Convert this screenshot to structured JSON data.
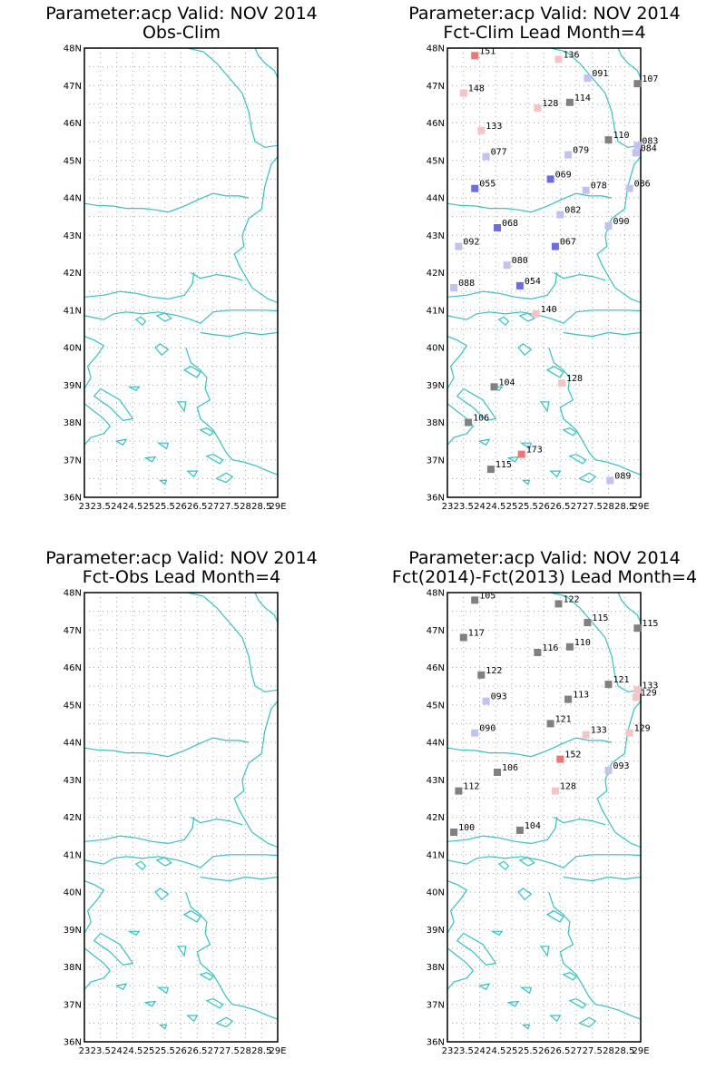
{
  "colors": {
    "coast": "#2ec4c4",
    "neutral": "#808080",
    "blue_strong": "#6b6bf2",
    "blue_light": "#c2c2f2",
    "red_light": "#f7c3c3",
    "red_strong": "#f27575"
  },
  "axes": {
    "lon_labels": [
      "23",
      "23.5",
      "24",
      "24.5",
      "25",
      "25.5",
      "26",
      "26.5",
      "27",
      "27.5",
      "28",
      "28.5",
      "29E"
    ],
    "lat_labels": [
      "36N",
      "37N",
      "38N",
      "39N",
      "40N",
      "41N",
      "42N",
      "43N",
      "44N",
      "45N",
      "46N",
      "47N",
      "48N"
    ]
  },
  "chart_data": [
    {
      "id": "obs-clim",
      "type": "map",
      "title_line1": "Parameter:acp Valid: NOV 2014",
      "title_line2": "Obs-Clim",
      "lon_range": [
        23,
        29
      ],
      "lat_range": [
        36,
        48
      ],
      "grid": "dotted",
      "points": []
    },
    {
      "id": "fct-clim",
      "type": "map",
      "title_line1": "Parameter:acp Valid: NOV 2014",
      "title_line2": "Fct-Clim Lead Month=4",
      "lon_range": [
        23,
        29
      ],
      "lat_range": [
        36,
        48
      ],
      "grid": "dotted",
      "points": [
        {
          "lon": 23.85,
          "lat": 47.8,
          "label": "151",
          "color": "#f27575"
        },
        {
          "lon": 26.45,
          "lat": 47.7,
          "label": "136",
          "color": "#f7c3c3"
        },
        {
          "lon": 27.35,
          "lat": 47.2,
          "label": "091",
          "color": "#c2c2f2"
        },
        {
          "lon": 28.9,
          "lat": 47.05,
          "label": "107",
          "color": "#808080"
        },
        {
          "lon": 23.5,
          "lat": 46.8,
          "label": "148",
          "color": "#f7c3c3"
        },
        {
          "lon": 25.8,
          "lat": 46.4,
          "label": "128",
          "color": "#f7c3c3"
        },
        {
          "lon": 26.8,
          "lat": 46.55,
          "label": "114",
          "color": "#808080"
        },
        {
          "lon": 24.05,
          "lat": 45.8,
          "label": "133",
          "color": "#f7c3c3"
        },
        {
          "lon": 28.0,
          "lat": 45.55,
          "label": "110",
          "color": "#808080"
        },
        {
          "lon": 28.9,
          "lat": 45.4,
          "label": "083",
          "color": "#c2c2f2"
        },
        {
          "lon": 28.85,
          "lat": 45.2,
          "label": "084",
          "color": "#c2c2f2"
        },
        {
          "lon": 24.2,
          "lat": 45.1,
          "label": "077",
          "color": "#c2c2f2"
        },
        {
          "lon": 26.75,
          "lat": 45.15,
          "label": "079",
          "color": "#c2c2f2"
        },
        {
          "lon": 26.2,
          "lat": 44.5,
          "label": "069",
          "color": "#6b6bf2"
        },
        {
          "lon": 23.85,
          "lat": 44.25,
          "label": "055",
          "color": "#6b6bf2"
        },
        {
          "lon": 27.3,
          "lat": 44.2,
          "label": "078",
          "color": "#c2c2f2"
        },
        {
          "lon": 28.65,
          "lat": 44.25,
          "label": "086",
          "color": "#c2c2f2"
        },
        {
          "lon": 26.5,
          "lat": 43.55,
          "label": "082",
          "color": "#c2c2f2"
        },
        {
          "lon": 24.55,
          "lat": 43.2,
          "label": "068",
          "color": "#6b6bf2"
        },
        {
          "lon": 28.0,
          "lat": 43.25,
          "label": "090",
          "color": "#c2c2f2"
        },
        {
          "lon": 23.35,
          "lat": 42.7,
          "label": "092",
          "color": "#c2c2f2"
        },
        {
          "lon": 26.35,
          "lat": 42.7,
          "label": "067",
          "color": "#6b6bf2"
        },
        {
          "lon": 24.85,
          "lat": 42.2,
          "label": "080",
          "color": "#c2c2f2"
        },
        {
          "lon": 25.25,
          "lat": 41.65,
          "label": "054",
          "color": "#6b6bf2"
        },
        {
          "lon": 23.2,
          "lat": 41.6,
          "label": "088",
          "color": "#c2c2f2"
        },
        {
          "lon": 25.75,
          "lat": 40.9,
          "label": "140",
          "color": "#f7c3c3"
        },
        {
          "lon": 24.45,
          "lat": 38.95,
          "label": "104",
          "color": "#808080"
        },
        {
          "lon": 26.55,
          "lat": 39.05,
          "label": "128",
          "color": "#f7c3c3"
        },
        {
          "lon": 23.65,
          "lat": 38.0,
          "label": "106",
          "color": "#808080"
        },
        {
          "lon": 25.3,
          "lat": 37.15,
          "label": "173",
          "color": "#f27575"
        },
        {
          "lon": 24.35,
          "lat": 36.75,
          "label": "115",
          "color": "#808080"
        },
        {
          "lon": 28.05,
          "lat": 36.45,
          "label": "089",
          "color": "#c2c2f2"
        }
      ]
    },
    {
      "id": "fct-obs",
      "type": "map",
      "title_line1": "Parameter:acp Valid: NOV 2014",
      "title_line2": "Fct-Obs Lead Month=4",
      "lon_range": [
        23,
        29
      ],
      "lat_range": [
        36,
        48
      ],
      "grid": "dotted",
      "points": []
    },
    {
      "id": "fct-diff",
      "type": "map",
      "title_line1": "Parameter:acp Valid: NOV 2014",
      "title_line2": "Fct(2014)-Fct(2013) Lead Month=4",
      "lon_range": [
        23,
        29
      ],
      "lat_range": [
        36,
        48
      ],
      "grid": "dotted",
      "points": [
        {
          "lon": 23.85,
          "lat": 47.8,
          "label": "105",
          "color": "#808080"
        },
        {
          "lon": 26.45,
          "lat": 47.7,
          "label": "122",
          "color": "#808080"
        },
        {
          "lon": 27.35,
          "lat": 47.2,
          "label": "115",
          "color": "#808080"
        },
        {
          "lon": 28.9,
          "lat": 47.05,
          "label": "115",
          "color": "#808080"
        },
        {
          "lon": 23.5,
          "lat": 46.8,
          "label": "117",
          "color": "#808080"
        },
        {
          "lon": 25.8,
          "lat": 46.4,
          "label": "116",
          "color": "#808080"
        },
        {
          "lon": 26.8,
          "lat": 46.55,
          "label": "110",
          "color": "#808080"
        },
        {
          "lon": 24.05,
          "lat": 45.8,
          "label": "122",
          "color": "#808080"
        },
        {
          "lon": 28.0,
          "lat": 45.55,
          "label": "121",
          "color": "#808080"
        },
        {
          "lon": 28.9,
          "lat": 45.4,
          "label": "133",
          "color": "#f7c3c3"
        },
        {
          "lon": 28.85,
          "lat": 45.2,
          "label": "129",
          "color": "#f7c3c3"
        },
        {
          "lon": 24.2,
          "lat": 45.1,
          "label": "093",
          "color": "#c2c2f2"
        },
        {
          "lon": 26.75,
          "lat": 45.15,
          "label": "113",
          "color": "#808080"
        },
        {
          "lon": 26.2,
          "lat": 44.5,
          "label": "121",
          "color": "#808080"
        },
        {
          "lon": 23.85,
          "lat": 44.25,
          "label": "090",
          "color": "#c2c2f2"
        },
        {
          "lon": 27.3,
          "lat": 44.2,
          "label": "133",
          "color": "#f7c3c3"
        },
        {
          "lon": 28.65,
          "lat": 44.25,
          "label": "129",
          "color": "#f7c3c3"
        },
        {
          "lon": 26.5,
          "lat": 43.55,
          "label": "152",
          "color": "#f27575"
        },
        {
          "lon": 24.55,
          "lat": 43.2,
          "label": "106",
          "color": "#808080"
        },
        {
          "lon": 28.0,
          "lat": 43.25,
          "label": "093",
          "color": "#c2c2f2"
        },
        {
          "lon": 23.35,
          "lat": 42.7,
          "label": "112",
          "color": "#808080"
        },
        {
          "lon": 26.35,
          "lat": 42.7,
          "label": "128",
          "color": "#f7c3c3"
        },
        {
          "lon": 25.25,
          "lat": 41.65,
          "label": "104",
          "color": "#808080"
        },
        {
          "lon": 23.2,
          "lat": 41.6,
          "label": "100",
          "color": "#808080"
        }
      ]
    }
  ]
}
